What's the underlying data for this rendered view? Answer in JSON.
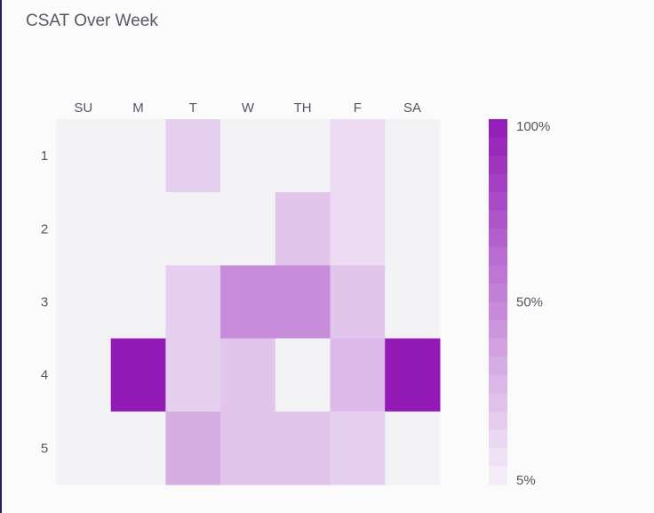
{
  "chart_data": {
    "type": "heatmap",
    "title": "CSAT Over Week",
    "x_categories": [
      "SU",
      "M",
      "T",
      "W",
      "TH",
      "F",
      "SA"
    ],
    "y_categories": [
      "1",
      "2",
      "3",
      "4",
      "5"
    ],
    "values": [
      [
        null,
        null,
        20,
        null,
        null,
        15,
        null
      ],
      [
        null,
        null,
        null,
        null,
        25,
        15,
        null
      ],
      [
        null,
        null,
        20,
        50,
        50,
        25,
        null
      ],
      [
        null,
        100,
        20,
        25,
        null,
        30,
        100
      ],
      [
        null,
        null,
        35,
        25,
        25,
        20,
        null
      ]
    ],
    "color_scale": {
      "min": 5,
      "max": 100,
      "min_color": "#f6f2f9",
      "max_color": "#931ab7",
      "empty_color": "#f3f3f5",
      "labels": [
        "100%",
        "50%",
        "5%"
      ]
    }
  }
}
